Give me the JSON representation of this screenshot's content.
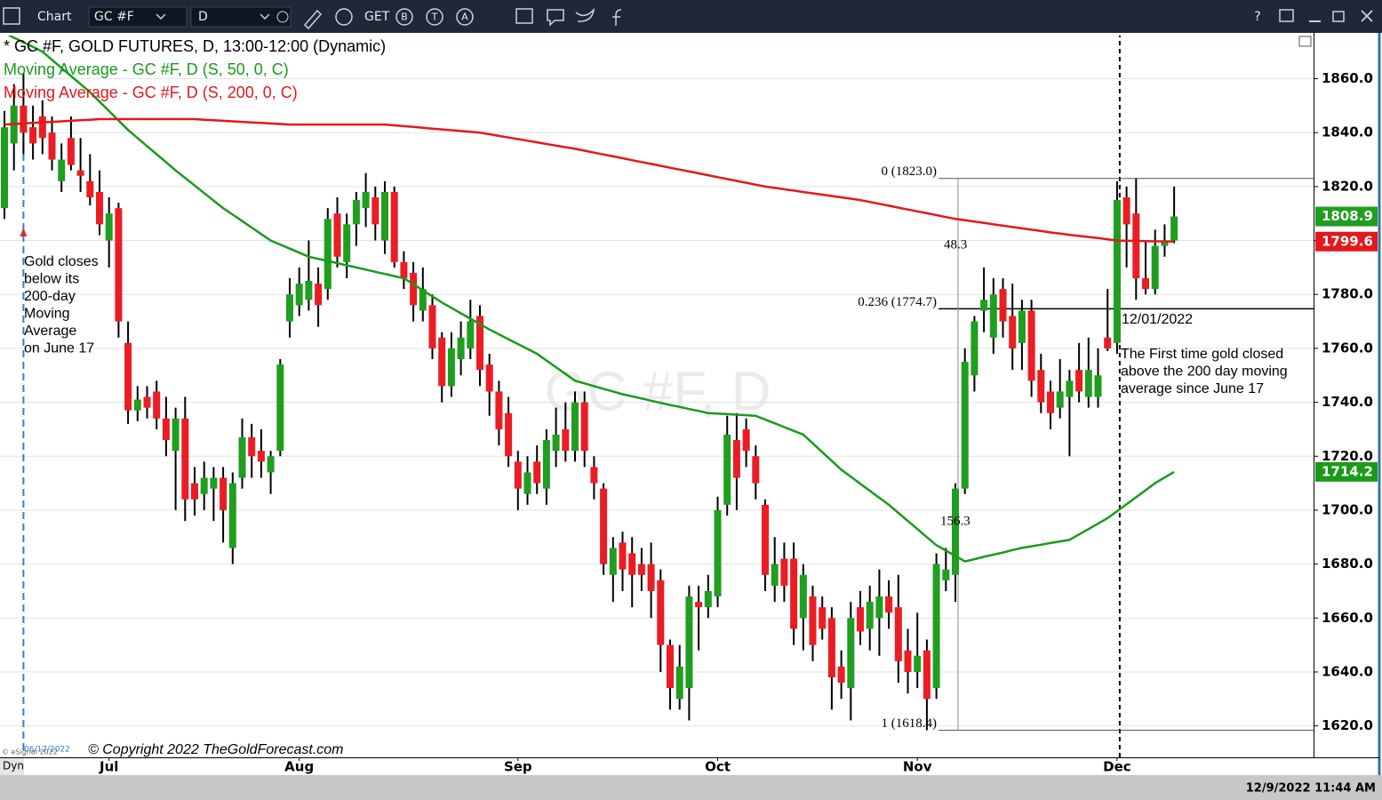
{
  "ui": {
    "app": "Chart",
    "symbol": "GC #F",
    "interval": "D",
    "get": "GET",
    "tools": [
      "B",
      "T",
      "A"
    ],
    "help": "?",
    "dyn": "Dyn",
    "esignal": "© eSignal 2022",
    "timestamp": "12/9/2022 11:44 AM"
  },
  "chart_data": {
    "type": "candlestick",
    "title": "* GC #F, GOLD FUTURES, D, 13:00-12:00 (Dynamic)",
    "watermark": "GC #F, D",
    "up_color": "#1f9e1f",
    "down_color": "#ec1c24",
    "grid": true,
    "categories": [
      null,
      null,
      null,
      null,
      null,
      null,
      null,
      null,
      null,
      null,
      null,
      "Jul",
      null,
      null,
      null,
      null,
      null,
      null,
      null,
      null,
      null,
      null,
      null,
      null,
      null,
      null,
      null,
      null,
      null,
      null,
      null,
      "Aug",
      null,
      null,
      null,
      null,
      null,
      null,
      null,
      null,
      null,
      null,
      null,
      null,
      null,
      null,
      null,
      null,
      null,
      null,
      null,
      null,
      null,
      null,
      "Sep",
      null,
      null,
      null,
      null,
      null,
      null,
      null,
      null,
      null,
      null,
      null,
      null,
      null,
      null,
      null,
      null,
      null,
      null,
      null,
      null,
      "Oct",
      null,
      null,
      null,
      null,
      null,
      null,
      null,
      null,
      null,
      null,
      null,
      null,
      null,
      null,
      null,
      null,
      null,
      null,
      null,
      null,
      "Nov",
      null,
      null,
      null,
      null,
      null,
      null,
      null,
      null,
      null,
      null,
      null,
      null,
      null,
      null,
      null,
      null,
      null,
      null,
      null,
      null,
      "Dec",
      null,
      null,
      null,
      null,
      null,
      null
    ],
    "open": [
      1812,
      1836,
      1850,
      1842,
      1846,
      1840,
      1822,
      1838,
      1826,
      1822,
      1818,
      1800,
      1812,
      1762,
      1737,
      1742,
      1744,
      1734,
      1722,
      1734,
      1710,
      1706,
      1708,
      1712,
      1686,
      1712,
      1727,
      1722,
      1714,
      1722,
      1770,
      1776,
      1778,
      1784,
      1782,
      1810,
      1792,
      1806,
      1812,
      1816,
      1800,
      1818,
      1792,
      1788,
      1774,
      1776,
      1764,
      1746,
      1756,
      1760,
      1772,
      1754,
      1744,
      1736,
      1718,
      1706,
      1718,
      1708,
      1722,
      1730,
      1722,
      1740,
      1716,
      1708,
      1676,
      1688,
      1684,
      1680,
      1680,
      1674,
      1650,
      1630,
      1634,
      1666,
      1664,
      1668,
      1702,
      1726,
      1730,
      1720,
      1702,
      1672,
      1682,
      1682,
      1660,
      1668,
      1664,
      1660,
      1642,
      1634,
      1664,
      1656,
      1660,
      1668,
      1664,
      1648,
      1640,
      1648,
      1634,
      1674,
      1676,
      1708,
      1750,
      1774,
      1764,
      1782,
      1772,
      1762,
      1774,
      1752,
      1744,
      1738,
      1742,
      1752,
      1742,
      1742,
      1764,
      1762,
      1816,
      1810,
      1786,
      1782,
      1798,
      1800
    ],
    "high": [
      1848,
      1858,
      1862,
      1850,
      1852,
      1846,
      1836,
      1846,
      1838,
      1832,
      1826,
      1816,
      1814,
      1770,
      1746,
      1746,
      1748,
      1742,
      1738,
      1742,
      1716,
      1718,
      1716,
      1716,
      1714,
      1734,
      1732,
      1730,
      1722,
      1756,
      1786,
      1790,
      1800,
      1790,
      1812,
      1816,
      1810,
      1818,
      1825,
      1820,
      1822,
      1820,
      1796,
      1792,
      1790,
      1780,
      1766,
      1766,
      1770,
      1778,
      1776,
      1758,
      1748,
      1742,
      1722,
      1720,
      1724,
      1730,
      1738,
      1740,
      1744,
      1744,
      1720,
      1710,
      1690,
      1692,
      1690,
      1686,
      1688,
      1678,
      1652,
      1650,
      1672,
      1672,
      1676,
      1705,
      1735,
      1736,
      1734,
      1724,
      1704,
      1690,
      1688,
      1688,
      1680,
      1672,
      1668,
      1664,
      1648,
      1666,
      1670,
      1672,
      1678,
      1674,
      1676,
      1656,
      1662,
      1652,
      1684,
      1686,
      1710,
      1760,
      1772,
      1790,
      1786,
      1786,
      1784,
      1778,
      1778,
      1758,
      1748,
      1756,
      1752,
      1762,
      1764,
      1760,
      1782,
      1822,
      1820,
      1823,
      1800,
      1804,
      1806,
      1820
    ],
    "low": [
      1808,
      1826,
      1832,
      1830,
      1832,
      1826,
      1818,
      1826,
      1818,
      1813,
      1802,
      1790,
      1764,
      1732,
      1733,
      1734,
      1730,
      1720,
      1700,
      1696,
      1698,
      1700,
      1696,
      1688,
      1680,
      1708,
      1712,
      1712,
      1706,
      1720,
      1764,
      1772,
      1774,
      1768,
      1778,
      1790,
      1786,
      1798,
      1805,
      1800,
      1795,
      1790,
      1782,
      1770,
      1770,
      1756,
      1740,
      1742,
      1750,
      1756,
      1746,
      1735,
      1724,
      1716,
      1700,
      1702,
      1706,
      1702,
      1716,
      1718,
      1718,
      1716,
      1704,
      1676,
      1666,
      1670,
      1664,
      1670,
      1660,
      1640,
      1626,
      1626,
      1622,
      1648,
      1660,
      1664,
      1698,
      1700,
      1716,
      1704,
      1670,
      1666,
      1666,
      1650,
      1648,
      1644,
      1652,
      1626,
      1630,
      1622,
      1650,
      1648,
      1646,
      1656,
      1636,
      1632,
      1634,
      1618.4,
      1630,
      1670,
      1666,
      1706,
      1744,
      1766,
      1758,
      1764,
      1752,
      1752,
      1742,
      1736,
      1730,
      1734,
      1720,
      1740,
      1738,
      1738,
      1759,
      1758,
      1790,
      1778,
      1780,
      1780,
      1794,
      1799
    ],
    "close": [
      1842,
      1850,
      1840,
      1836,
      1838,
      1830,
      1830,
      1828,
      1824,
      1816,
      1806,
      1810,
      1770,
      1737,
      1741,
      1738,
      1734,
      1726,
      1734,
      1704,
      1704,
      1712,
      1712,
      1700,
      1710,
      1727,
      1720,
      1718,
      1720,
      1754,
      1780,
      1784,
      1785,
      1776,
      1808,
      1794,
      1806,
      1815,
      1818,
      1806,
      1818,
      1792,
      1786,
      1776,
      1782,
      1760,
      1746,
      1760,
      1764,
      1770,
      1752,
      1744,
      1730,
      1720,
      1708,
      1714,
      1710,
      1726,
      1728,
      1722,
      1740,
      1722,
      1710,
      1680,
      1686,
      1678,
      1676,
      1676,
      1670,
      1650,
      1634,
      1642,
      1668,
      1664,
      1670,
      1700,
      1728,
      1712,
      1722,
      1710,
      1676,
      1680,
      1672,
      1656,
      1676,
      1650,
      1656,
      1638,
      1636,
      1660,
      1655,
      1666,
      1668,
      1662,
      1644,
      1640,
      1646,
      1630,
      1680,
      1678,
      1708,
      1755,
      1770,
      1778,
      1780,
      1770,
      1760,
      1774,
      1748,
      1740,
      1736,
      1744,
      1748,
      1744,
      1752,
      1750,
      1760,
      1815,
      1806,
      1786,
      1782,
      1798,
      1800,
      1808.9
    ],
    "lines": [
      {
        "name": "Moving Average - GC #F, D (S, 50, 0, C)",
        "color": "#1a9a1a",
        "values": [
          1877,
          1875.2,
          1873.5,
          1871.8,
          1870,
          1867,
          1864,
          1861,
          1858,
          1855,
          1851.5,
          1848,
          1844.5,
          1841,
          1838,
          1835,
          1832,
          1829,
          1826,
          1823.2,
          1820.4,
          1817.6,
          1814.8,
          1812,
          1809.6,
          1807.2,
          1804.8,
          1802.4,
          1800,
          1798.5,
          1797,
          1795.5,
          1794,
          1793.2,
          1792.4,
          1791.6,
          1790.8,
          1790,
          1789.2,
          1788.4,
          1787.6,
          1786.8,
          1786,
          1783.8,
          1781.5,
          1779.3,
          1777,
          1775,
          1773,
          1771,
          1769,
          1767,
          1765.2,
          1763.4,
          1761.6,
          1759.8,
          1758,
          1755.5,
          1753,
          1750.5,
          1748,
          1747,
          1746,
          1745,
          1744,
          1743,
          1742.2,
          1741.4,
          1740.6,
          1739.8,
          1739,
          1738.3,
          1737.5,
          1736.8,
          1736,
          1735.8,
          1735.6,
          1735.4,
          1735.2,
          1735,
          1733.6,
          1732.2,
          1730.8,
          1729.4,
          1728,
          1724.8,
          1721.5,
          1718.3,
          1715,
          1712.4,
          1709.8,
          1707.2,
          1704.6,
          1702,
          1699,
          1696,
          1693,
          1690,
          1687,
          1685,
          1683,
          1681,
          1681.8,
          1682.7,
          1683.5,
          1684.3,
          1685.2,
          1686,
          1686.6,
          1687.2,
          1687.8,
          1688.4,
          1689,
          1691,
          1693,
          1695,
          1697,
          1699.6,
          1702.2,
          1704.8,
          1707.4,
          1710,
          1712.1,
          1714.2
        ]
      },
      {
        "name": "Moving Average - GC #F, D (S, 200, 0, C)",
        "color": "#e3181c",
        "values": [
          1843,
          1843.2,
          1843.4,
          1843.6,
          1843.8,
          1844,
          1844.2,
          1844.4,
          1844.6,
          1844.8,
          1845,
          1845,
          1845,
          1845,
          1845,
          1845,
          1845,
          1845,
          1845,
          1845,
          1845,
          1844.8,
          1844.6,
          1844.4,
          1844.2,
          1844,
          1843.8,
          1843.6,
          1843.4,
          1843.2,
          1843,
          1843,
          1843,
          1843,
          1843,
          1843,
          1843,
          1843,
          1843,
          1843,
          1843,
          1842.7,
          1842.4,
          1842.1,
          1841.8,
          1841.5,
          1841.2,
          1840.9,
          1840.6,
          1840.3,
          1840,
          1839.4,
          1838.8,
          1838.2,
          1837.6,
          1837,
          1836.4,
          1835.8,
          1835.2,
          1834.6,
          1834,
          1833.3,
          1832.6,
          1831.9,
          1831.2,
          1830.5,
          1829.8,
          1829.1,
          1828.4,
          1827.7,
          1827,
          1826.3,
          1825.6,
          1824.9,
          1824.2,
          1823.5,
          1822.8,
          1822.1,
          1821.4,
          1820.7,
          1820,
          1819.5,
          1819,
          1818.5,
          1818,
          1817.5,
          1817,
          1816.5,
          1816,
          1815.5,
          1815,
          1814.3,
          1813.6,
          1812.9,
          1812.2,
          1811.5,
          1810.8,
          1810.1,
          1809.4,
          1808.7,
          1808,
          1807.5,
          1807,
          1806.5,
          1806,
          1805.5,
          1805,
          1804.5,
          1804,
          1803.5,
          1803,
          1802.6,
          1802.1,
          1801.7,
          1801.3,
          1800.9,
          1800.4,
          1800,
          1799.9,
          1799.9,
          1799.8,
          1799.7,
          1799.7,
          1799.6
        ]
      }
    ],
    "ylim": [
      1609,
      1876
    ],
    "yticks": [
      {
        "value": 1620,
        "label": "1620.0"
      },
      {
        "value": 1640,
        "label": "1640.0"
      },
      {
        "value": 1660,
        "label": "1660.0"
      },
      {
        "value": 1680,
        "label": "1680.0"
      },
      {
        "value": 1700,
        "label": "1700.0"
      },
      {
        "value": 1720,
        "label": "1720.0"
      },
      {
        "value": 1740,
        "label": "1740.0"
      },
      {
        "value": 1760,
        "label": "1760.0"
      },
      {
        "value": 1780,
        "label": "1780.0"
      },
      {
        "value": 1800,
        "label": "1800.0"
      },
      {
        "value": 1820,
        "label": "1820.0"
      },
      {
        "value": 1840,
        "label": "1840.0"
      },
      {
        "value": 1860,
        "label": "1860.0"
      }
    ],
    "fib_levels": [
      {
        "label": "0 (1823.0)",
        "value": 1823.0
      },
      {
        "label": "0.236 (1774.7)",
        "value": 1774.7
      },
      {
        "label": "1 (1618.4)",
        "value": 1618.4
      }
    ],
    "annotations": {
      "range_top": "48.3",
      "range_bottom": "156.3",
      "june_date": "06/17/2022",
      "dec_date": "12/01/2022",
      "june_note": [
        "Gold closes",
        "below its",
        "200-day",
        "Moving",
        "Average",
        "on June 17"
      ],
      "dec_note": [
        "The First time gold closed",
        "above the 200 day moving",
        "average since June 17"
      ],
      "copyright": "© Copyright 2022 TheGoldForecast.com"
    }
  }
}
